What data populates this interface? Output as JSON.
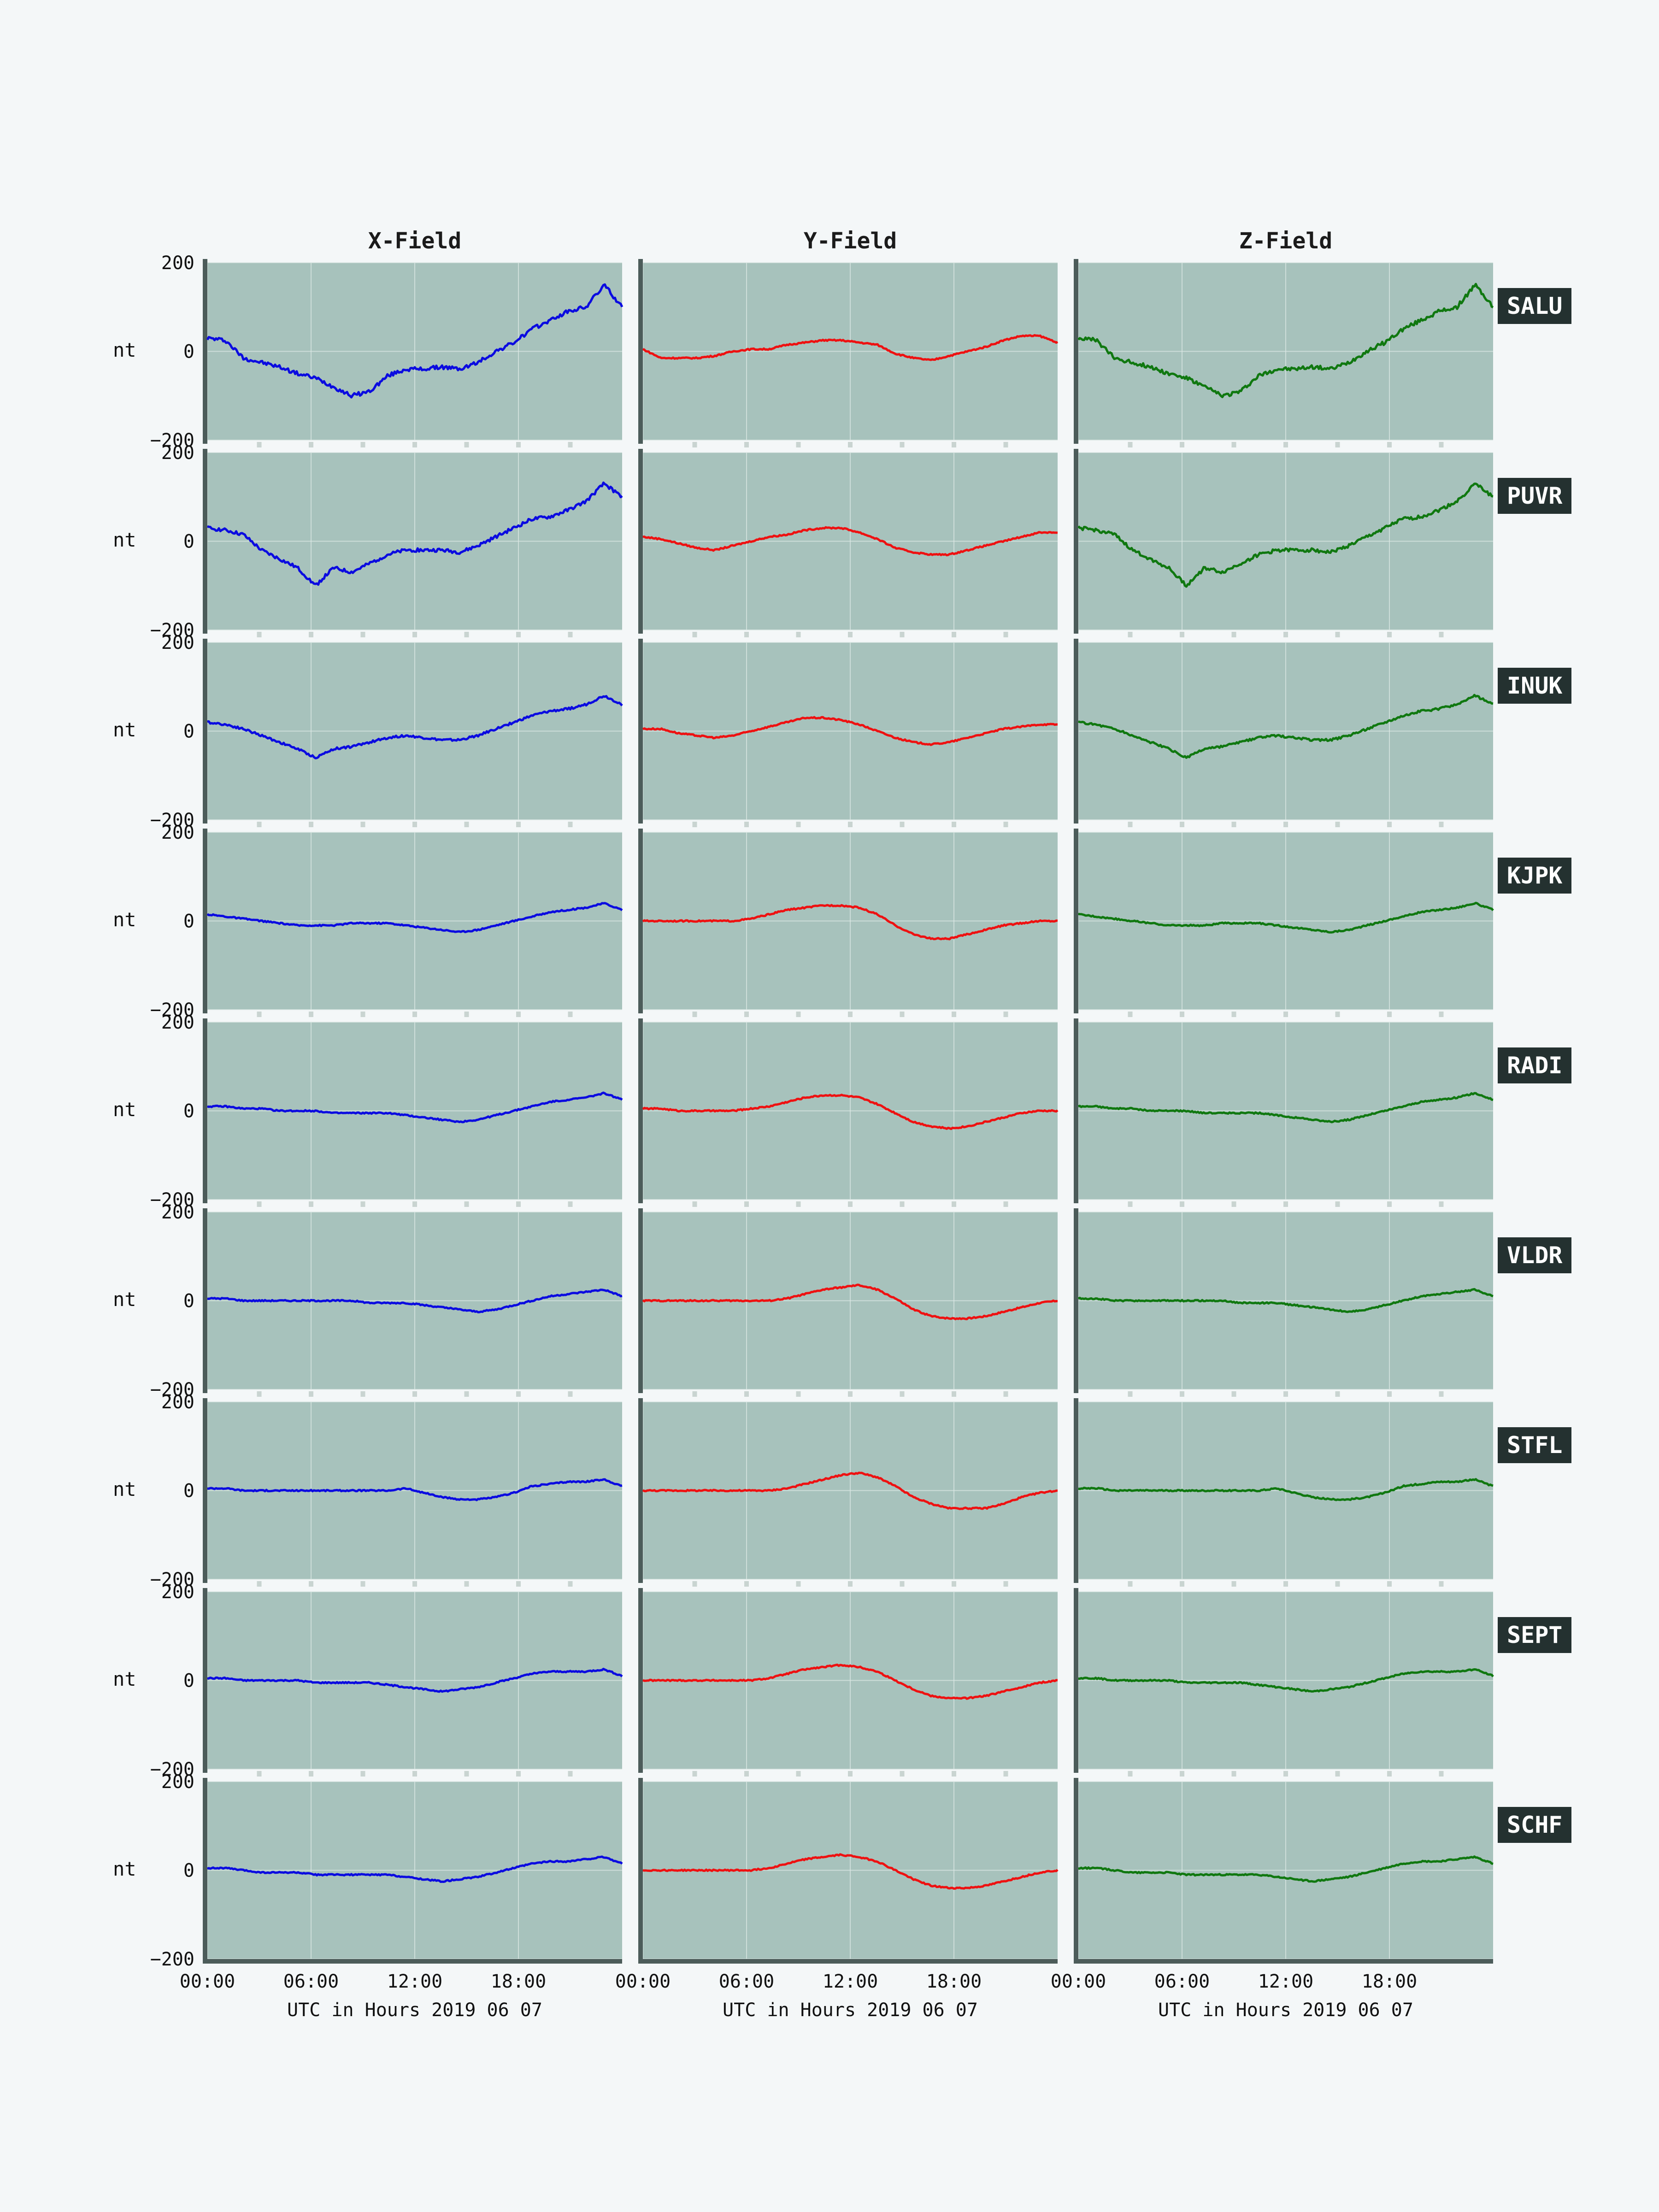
{
  "columns": [
    "X-Field",
    "Y-Field",
    "Z-Field"
  ],
  "x_axis": {
    "label": "UTC in Hours  2019 06 07",
    "ticks": [
      "00:00",
      "06:00",
      "12:00",
      "18:00"
    ],
    "range_hours": [
      0,
      24
    ]
  },
  "y_axis": {
    "unit": "nt",
    "ticks": [
      -200,
      0,
      200
    ],
    "ylim": [
      -200,
      200
    ]
  },
  "colors": {
    "x": "#0b0be0",
    "y": "#ee1111",
    "z": "#107810",
    "panel_bg": "#a7c2bc",
    "page_bg": "#f4f7f8"
  },
  "chart_data": {
    "type": "line",
    "x_hours_step": 1,
    "title": "",
    "stations": [
      {
        "name": "SALU",
        "x": [
          30,
          25,
          -15,
          -25,
          -35,
          -50,
          -60,
          -80,
          -100,
          -90,
          -55,
          -40,
          -40,
          -35,
          -40,
          -25,
          0,
          20,
          50,
          70,
          90,
          100,
          150,
          100
        ],
        "y": [
          5,
          -15,
          -15,
          -15,
          -10,
          0,
          5,
          5,
          15,
          20,
          25,
          25,
          20,
          15,
          -5,
          -15,
          -20,
          -10,
          0,
          10,
          25,
          35,
          35,
          20
        ],
        "z": [
          30,
          25,
          -15,
          -25,
          -35,
          -50,
          -60,
          -80,
          -100,
          -90,
          -55,
          -40,
          -40,
          -35,
          -40,
          -25,
          0,
          20,
          50,
          70,
          90,
          100,
          150,
          100
        ]
      },
      {
        "name": "PUVR",
        "x": [
          30,
          25,
          15,
          -20,
          -40,
          -60,
          -100,
          -60,
          -70,
          -50,
          -30,
          -20,
          -20,
          -20,
          -25,
          -10,
          10,
          30,
          50,
          55,
          70,
          90,
          130,
          100
        ],
        "y": [
          10,
          5,
          -5,
          -15,
          -20,
          -10,
          0,
          10,
          15,
          25,
          30,
          30,
          20,
          5,
          -15,
          -25,
          -30,
          -30,
          -20,
          -10,
          0,
          10,
          20,
          20
        ],
        "z": [
          30,
          25,
          15,
          -20,
          -40,
          -60,
          -100,
          -60,
          -70,
          -50,
          -30,
          -20,
          -20,
          -20,
          -25,
          -10,
          10,
          30,
          50,
          55,
          70,
          90,
          130,
          100
        ]
      },
      {
        "name": "INUK",
        "x": [
          20,
          15,
          5,
          -10,
          -25,
          -40,
          -60,
          -40,
          -35,
          -25,
          -15,
          -10,
          -15,
          -20,
          -20,
          -10,
          5,
          20,
          35,
          45,
          50,
          60,
          80,
          60
        ],
        "y": [
          5,
          5,
          -5,
          -10,
          -15,
          -10,
          0,
          10,
          20,
          30,
          30,
          25,
          15,
          0,
          -15,
          -25,
          -30,
          -25,
          -15,
          -5,
          5,
          10,
          15,
          15
        ],
        "z": [
          20,
          15,
          5,
          -10,
          -25,
          -40,
          -60,
          -40,
          -35,
          -25,
          -15,
          -10,
          -15,
          -20,
          -20,
          -10,
          5,
          20,
          35,
          45,
          50,
          60,
          80,
          60
        ]
      },
      {
        "name": "KJPK",
        "x": [
          15,
          10,
          5,
          0,
          -5,
          -10,
          -10,
          -10,
          -5,
          -5,
          -5,
          -10,
          -15,
          -20,
          -25,
          -20,
          -10,
          0,
          10,
          20,
          25,
          30,
          40,
          25
        ],
        "y": [
          0,
          0,
          0,
          0,
          0,
          0,
          5,
          15,
          25,
          30,
          35,
          35,
          30,
          15,
          -10,
          -30,
          -40,
          -40,
          -30,
          -20,
          -10,
          -5,
          0,
          0
        ],
        "z": [
          15,
          10,
          5,
          0,
          -5,
          -10,
          -10,
          -10,
          -5,
          -5,
          -5,
          -10,
          -15,
          -20,
          -25,
          -20,
          -10,
          0,
          10,
          20,
          25,
          30,
          40,
          25
        ]
      },
      {
        "name": "RADI",
        "x": [
          10,
          10,
          5,
          5,
          0,
          0,
          0,
          -5,
          -5,
          -5,
          -5,
          -10,
          -15,
          -20,
          -25,
          -20,
          -10,
          0,
          10,
          20,
          25,
          30,
          40,
          25
        ],
        "y": [
          5,
          5,
          0,
          0,
          0,
          0,
          5,
          10,
          20,
          30,
          35,
          35,
          30,
          15,
          -5,
          -25,
          -35,
          -40,
          -35,
          -25,
          -15,
          -5,
          0,
          0
        ],
        "z": [
          10,
          10,
          5,
          5,
          0,
          0,
          0,
          -5,
          -5,
          -5,
          -5,
          -10,
          -15,
          -20,
          -25,
          -20,
          -10,
          0,
          10,
          20,
          25,
          30,
          40,
          25
        ]
      },
      {
        "name": "VLDR",
        "x": [
          5,
          5,
          0,
          0,
          0,
          0,
          0,
          0,
          0,
          -5,
          -5,
          -5,
          -10,
          -15,
          -20,
          -25,
          -20,
          -10,
          0,
          10,
          15,
          20,
          25,
          10
        ],
        "y": [
          0,
          0,
          0,
          0,
          0,
          0,
          0,
          0,
          5,
          15,
          25,
          30,
          35,
          25,
          5,
          -20,
          -35,
          -40,
          -40,
          -35,
          -25,
          -15,
          -5,
          0
        ],
        "z": [
          5,
          5,
          0,
          0,
          0,
          0,
          0,
          0,
          0,
          -5,
          -5,
          -5,
          -10,
          -15,
          -20,
          -25,
          -20,
          -10,
          0,
          10,
          15,
          20,
          25,
          10
        ]
      },
      {
        "name": "STFL",
        "x": [
          5,
          5,
          0,
          0,
          0,
          0,
          0,
          0,
          0,
          0,
          0,
          5,
          -5,
          -15,
          -20,
          -20,
          -15,
          -5,
          10,
          15,
          20,
          20,
          25,
          10
        ],
        "y": [
          0,
          0,
          0,
          0,
          0,
          0,
          0,
          0,
          5,
          15,
          25,
          35,
          40,
          30,
          10,
          -15,
          -30,
          -40,
          -40,
          -40,
          -30,
          -15,
          -5,
          0
        ],
        "z": [
          5,
          5,
          0,
          0,
          0,
          0,
          0,
          0,
          0,
          0,
          0,
          5,
          -5,
          -15,
          -20,
          -20,
          -15,
          -5,
          10,
          15,
          20,
          20,
          25,
          10
        ]
      },
      {
        "name": "SEPT",
        "x": [
          5,
          5,
          0,
          0,
          0,
          0,
          -5,
          -5,
          -5,
          -5,
          -10,
          -15,
          -20,
          -25,
          -20,
          -15,
          -5,
          5,
          15,
          20,
          20,
          20,
          25,
          10
        ],
        "y": [
          0,
          0,
          0,
          0,
          0,
          0,
          0,
          5,
          15,
          25,
          30,
          35,
          30,
          20,
          0,
          -20,
          -35,
          -40,
          -40,
          -35,
          -25,
          -15,
          -5,
          0
        ],
        "z": [
          5,
          5,
          0,
          0,
          0,
          0,
          -5,
          -5,
          -5,
          -5,
          -10,
          -15,
          -20,
          -25,
          -20,
          -15,
          -5,
          5,
          15,
          20,
          20,
          20,
          25,
          10
        ]
      },
      {
        "name": "SCHF",
        "x": [
          5,
          5,
          0,
          -5,
          -5,
          -5,
          -10,
          -10,
          -10,
          -10,
          -10,
          -15,
          -20,
          -25,
          -20,
          -15,
          -5,
          5,
          15,
          20,
          20,
          25,
          30,
          15
        ],
        "y": [
          0,
          0,
          0,
          0,
          0,
          0,
          0,
          5,
          15,
          25,
          30,
          35,
          30,
          20,
          0,
          -20,
          -35,
          -40,
          -40,
          -35,
          -25,
          -15,
          -5,
          0
        ],
        "z": [
          5,
          5,
          0,
          -5,
          -5,
          -5,
          -10,
          -10,
          -10,
          -10,
          -10,
          -15,
          -20,
          -25,
          -20,
          -15,
          -5,
          5,
          15,
          20,
          20,
          25,
          30,
          15
        ]
      }
    ]
  }
}
